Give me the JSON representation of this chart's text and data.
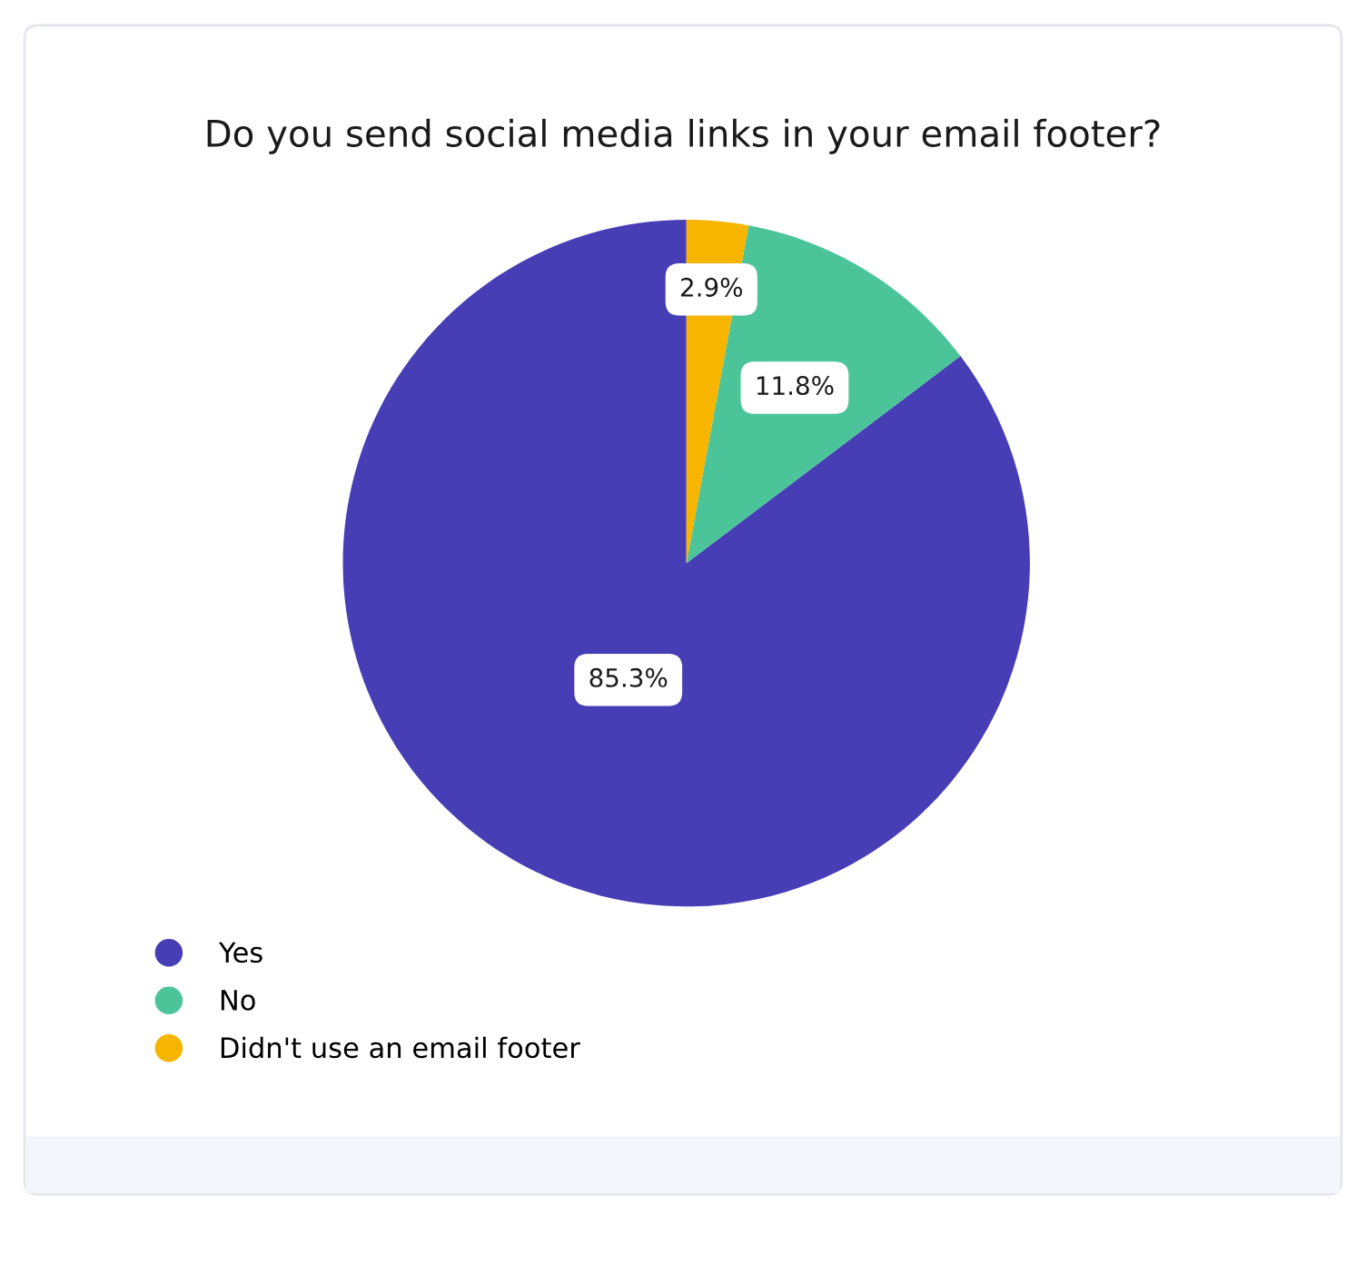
{
  "chart_data": {
    "type": "pie",
    "title": "Do you send social media links in your email footer?",
    "categories": [
      "Yes",
      "No",
      "Didn't use an email footer"
    ],
    "values": [
      85.3,
      11.8,
      2.9
    ],
    "colors": [
      "#473db5",
      "#4cc499",
      "#f7b500"
    ],
    "value_labels": [
      "85.3%",
      "11.8%",
      "2.9%"
    ],
    "legend": "bottom left"
  }
}
